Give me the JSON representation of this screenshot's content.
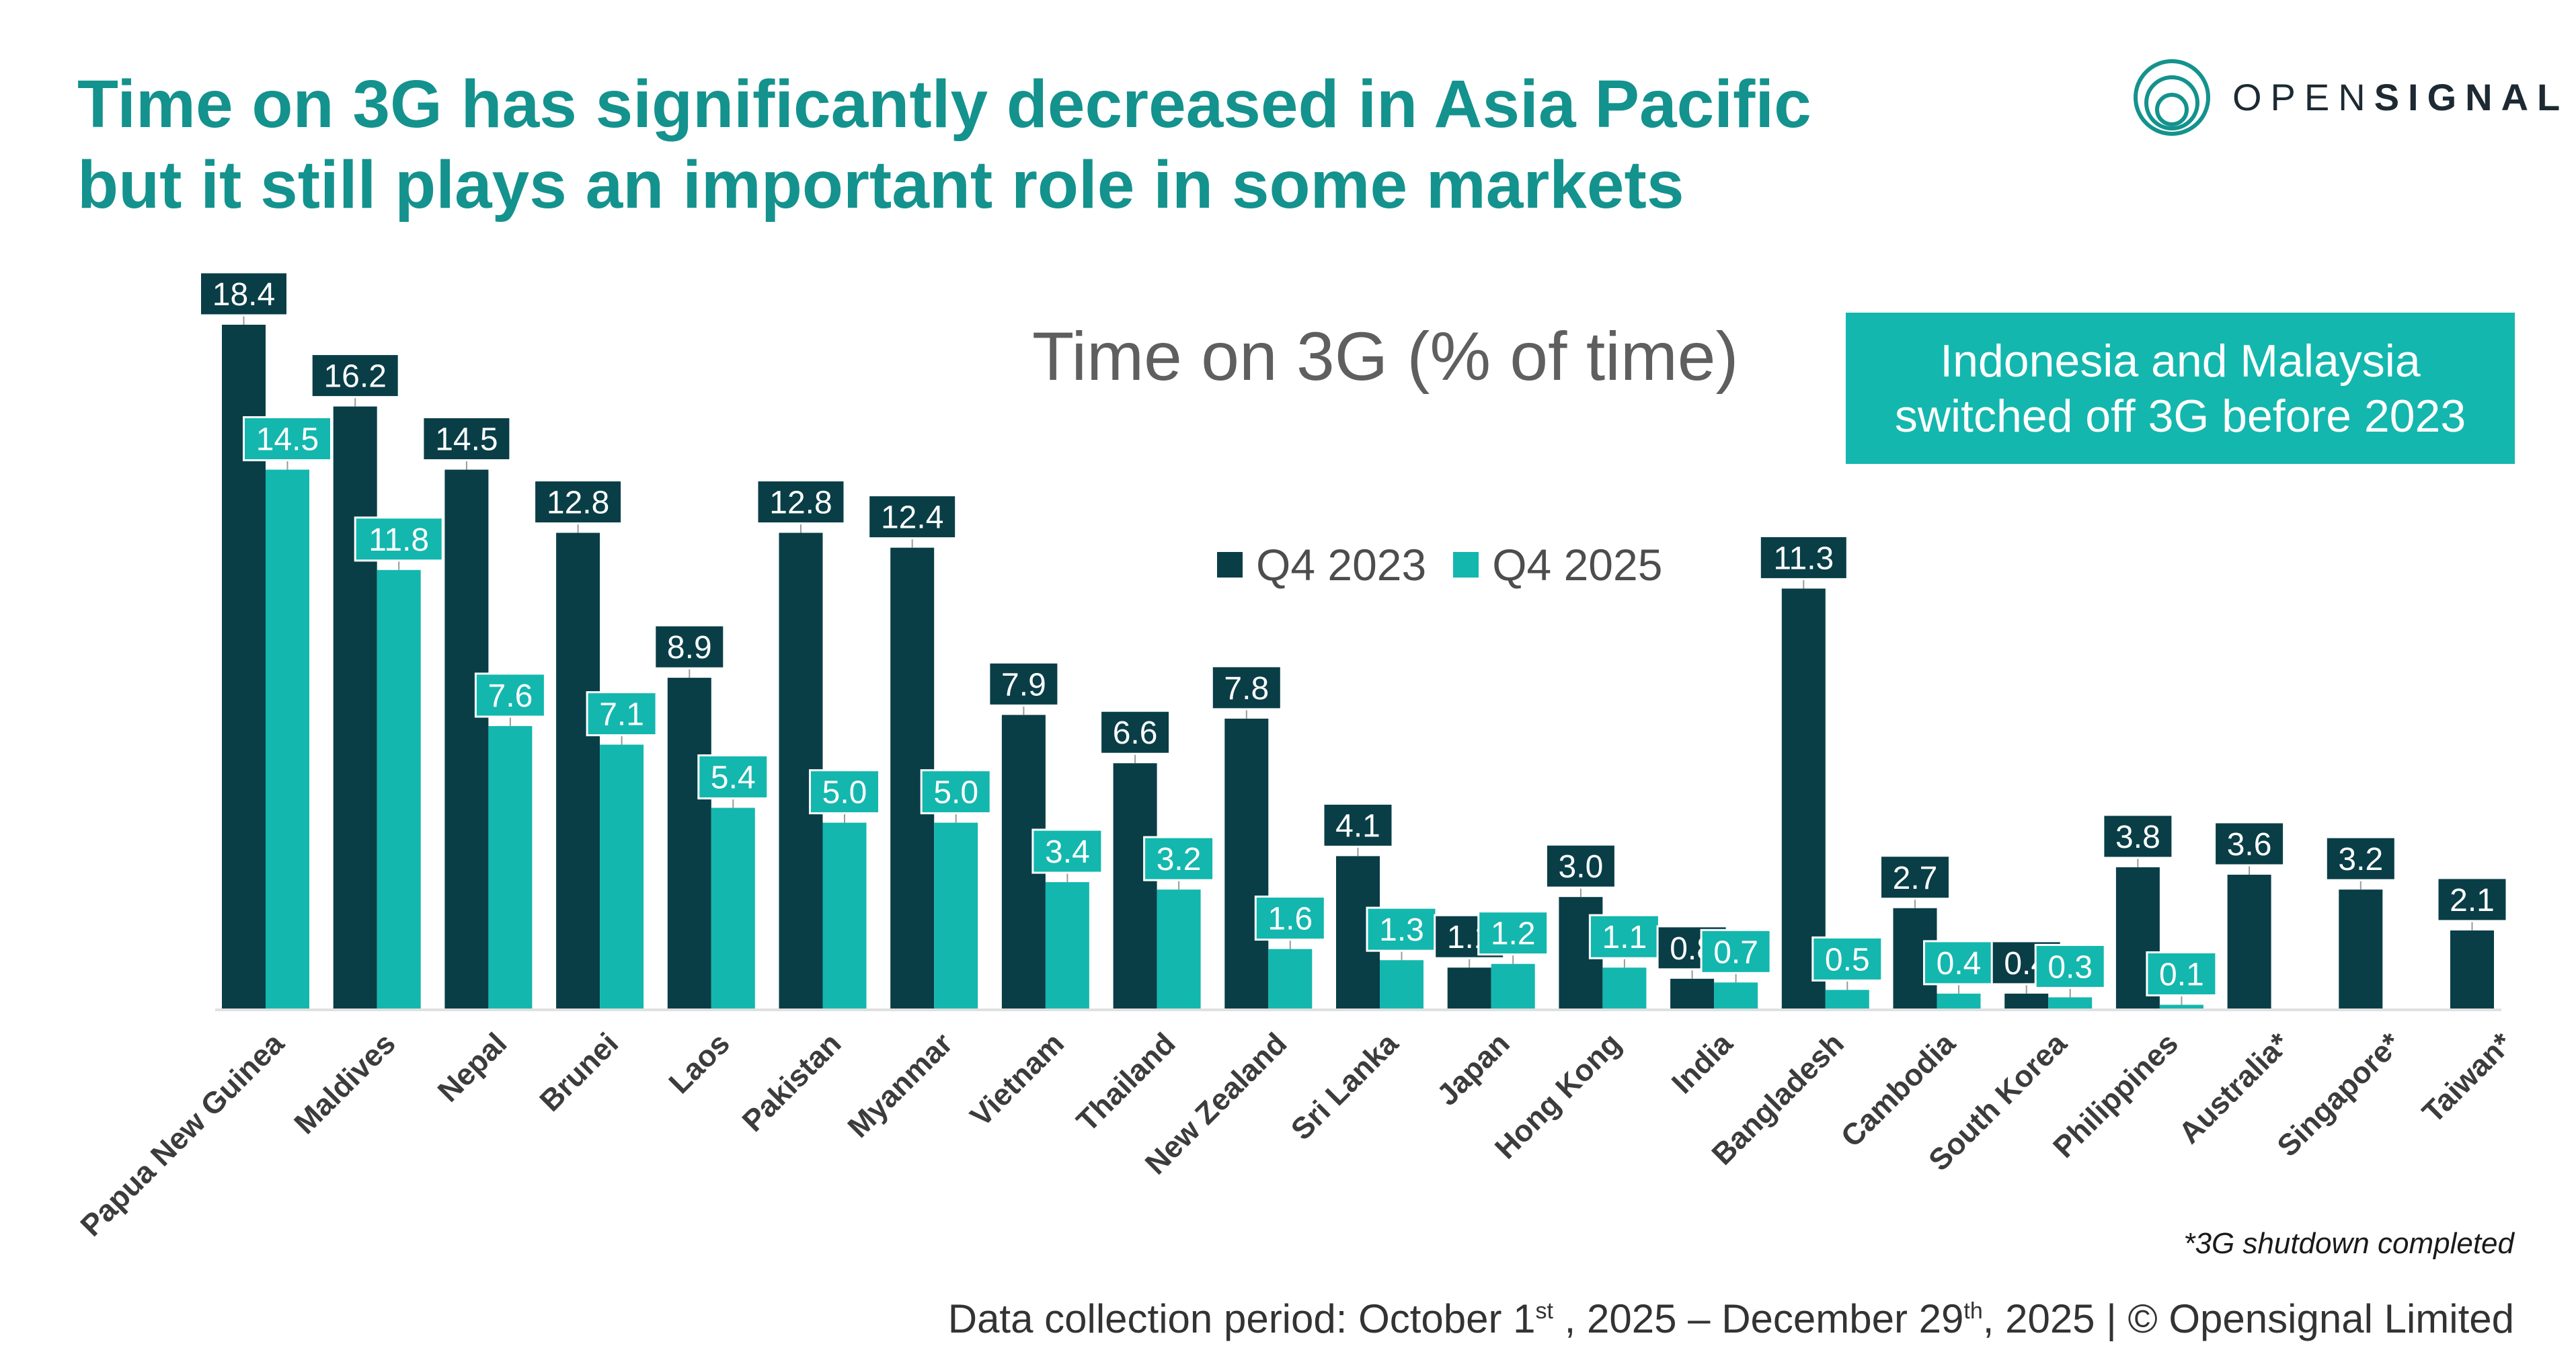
{
  "header": {
    "title_line1": "Time on 3G has significantly decreased in Asia Pacific",
    "title_line2": "but it still plays an important role in some markets"
  },
  "logo": {
    "text_light": "OPEN",
    "text_bold": "SIGNAL"
  },
  "callout": {
    "line1": "Indonesia and Malaysia",
    "line2": "switched off 3G before 2023",
    "color": "#13b7ae"
  },
  "colors": {
    "q4_2023": "#093e47",
    "q4_2025": "#13b7ae",
    "title": "#14928d"
  },
  "footer": {
    "footnote": "*3G shutdown completed",
    "source_before": "Data collection period: October 1",
    "source_sup1": "st",
    "source_middle": " , 2025 – December 29",
    "source_sup2": "th",
    "source_after": ", 2025 | © Opensignal Limited"
  },
  "chart_data": {
    "type": "bar",
    "title": "Time on 3G (% of time)",
    "categories": [
      "Papua New Guinea",
      "Maldives",
      "Nepal",
      "Brunei",
      "Laos",
      "Pakistan",
      "Myanmar",
      "Vietnam",
      "Thailand",
      "New Zealand",
      "Sri Lanka",
      "Japan",
      "Hong Kong",
      "India",
      "Bangladesh",
      "Cambodia",
      "South Korea",
      "Philippines",
      "Australia*",
      "Singapore*",
      "Taiwan*"
    ],
    "series": [
      {
        "name": "Q4 2023",
        "color": "#093e47",
        "values": [
          18.4,
          16.2,
          14.5,
          12.8,
          8.9,
          12.8,
          12.4,
          7.9,
          6.6,
          7.8,
          4.1,
          1.1,
          3.0,
          0.8,
          11.3,
          2.7,
          0.4,
          3.8,
          3.6,
          3.2,
          2.1
        ]
      },
      {
        "name": "Q4 2025",
        "color": "#13b7ae",
        "values": [
          14.5,
          11.8,
          7.6,
          7.1,
          5.4,
          5.0,
          5.0,
          3.4,
          3.2,
          1.6,
          1.3,
          1.2,
          1.1,
          0.7,
          0.5,
          0.4,
          0.3,
          0.1,
          null,
          null,
          null
        ]
      }
    ],
    "ylim": [
      0,
      19
    ],
    "legend_position": "top-center",
    "grid": false,
    "value_labels": true
  }
}
